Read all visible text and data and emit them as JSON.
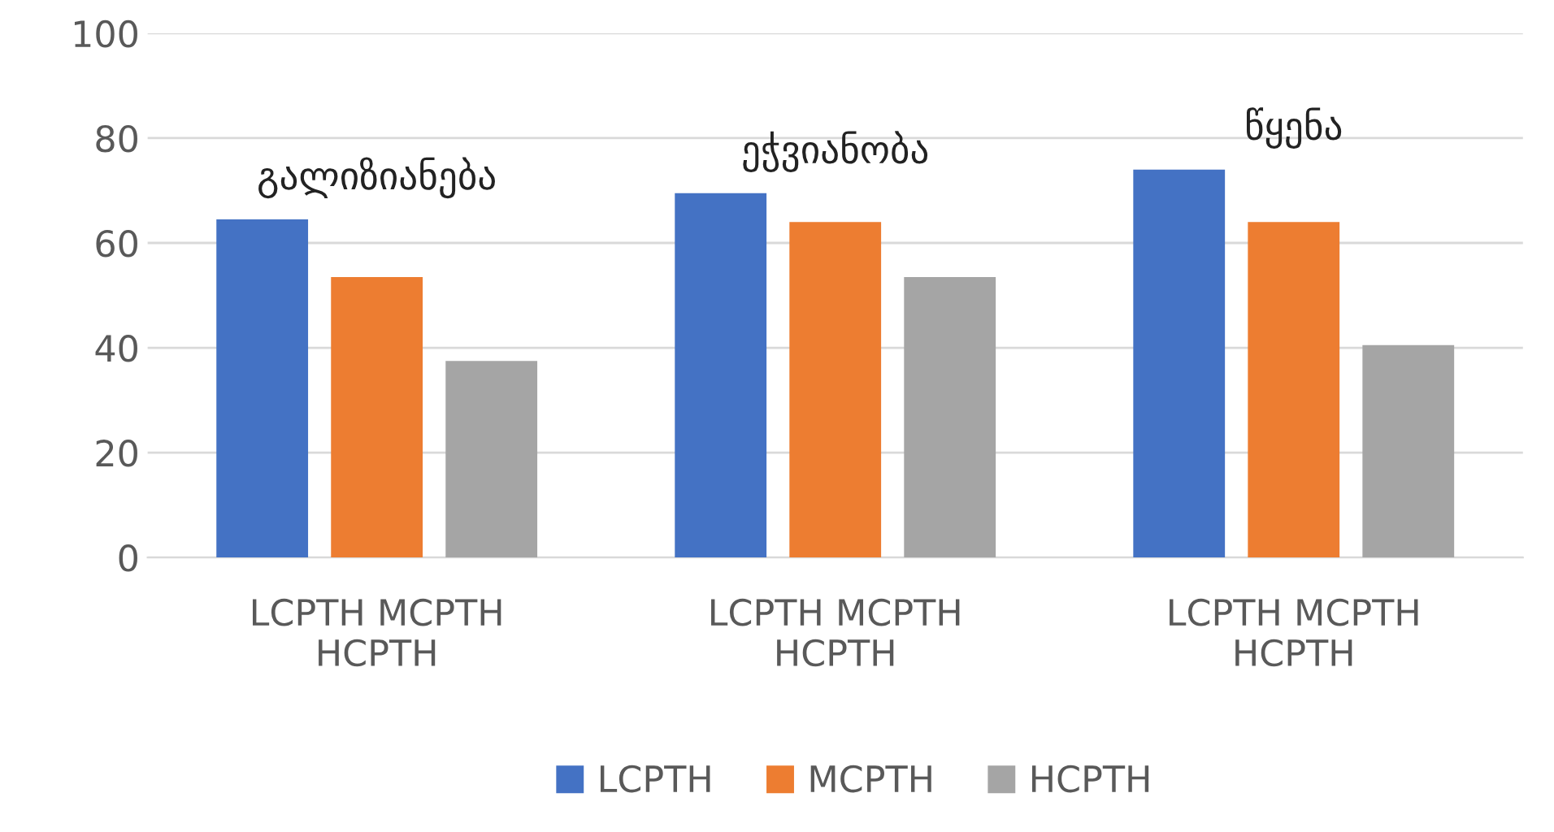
{
  "chart_data": {
    "type": "bar",
    "categories": [
      "LCPTH MCPTH\nHCPTH",
      "LCPTH MCPTH\nHCPTH",
      "LCPTH MCPTH\nHCPTH"
    ],
    "series": [
      {
        "name": "LCPTH",
        "color": "#4472c4",
        "values": [
          64.5,
          69.5,
          74
        ]
      },
      {
        "name": "MCPTH",
        "color": "#ed7d31",
        "values": [
          53.5,
          64,
          64
        ]
      },
      {
        "name": "HCPTH",
        "color": "#a5a5a5",
        "values": [
          37.5,
          53.5,
          40.5
        ]
      }
    ],
    "annotations": [
      "გალიზიანება",
      "ეჭვიანობა",
      "წყენა"
    ],
    "ylim": [
      0,
      100
    ],
    "yticks": [
      0,
      20,
      40,
      60,
      80,
      100
    ],
    "grid": "y",
    "legend": "bottom"
  }
}
